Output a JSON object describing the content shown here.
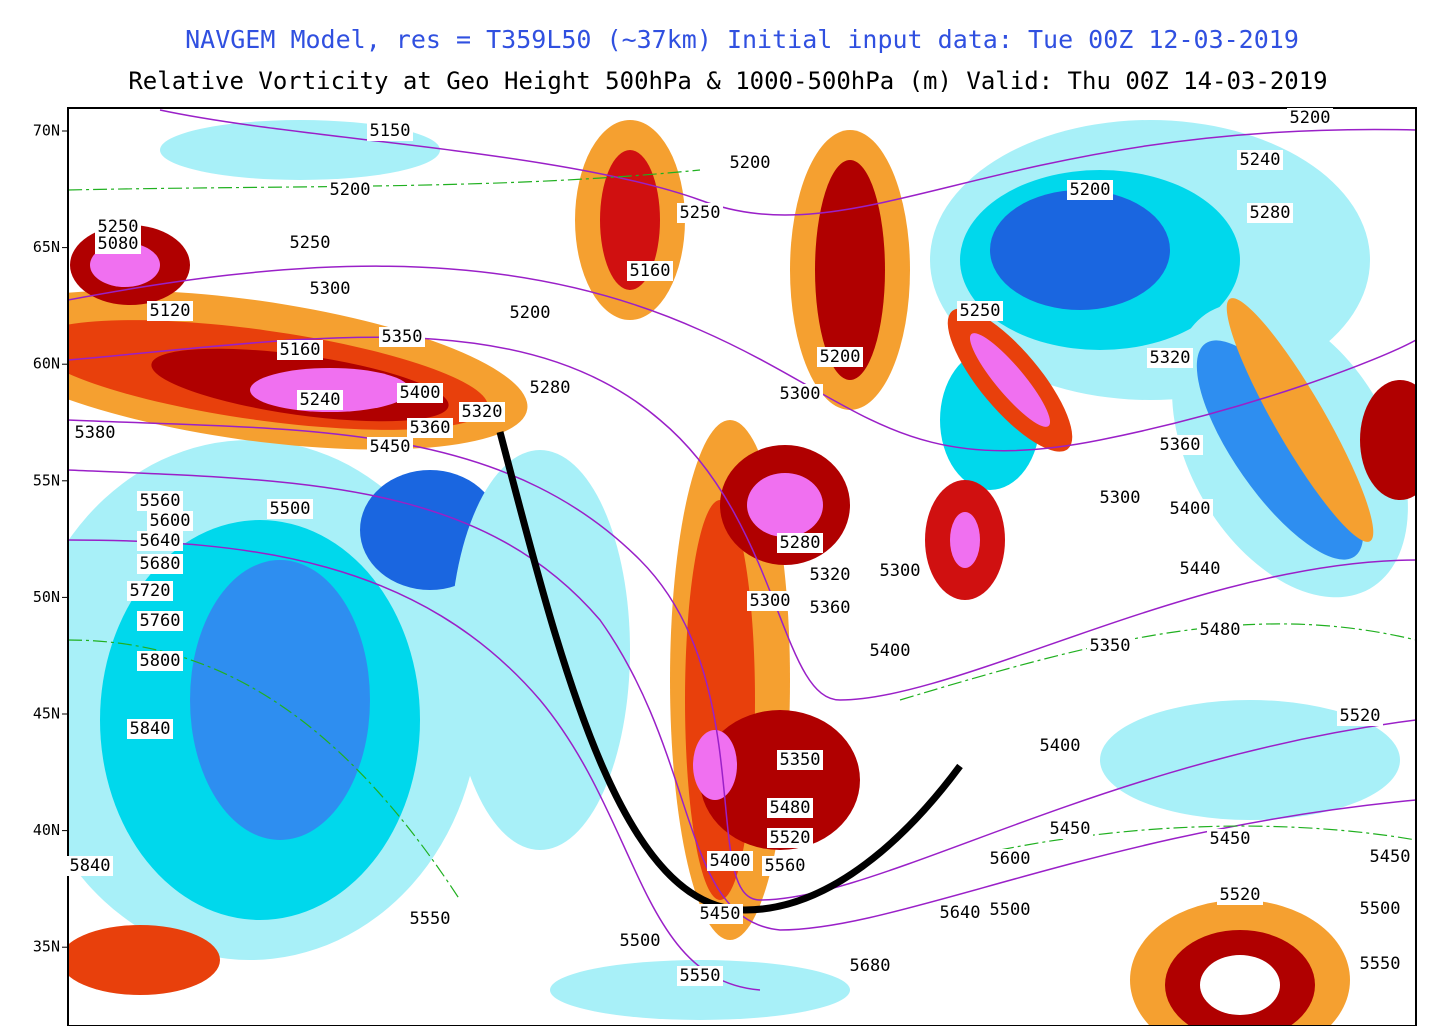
{
  "header": {
    "line1": "NAVGEM Model, res = T359L50 (~37km)    Initial input data: Tue 00Z 12-03-2019",
    "line2": "Relative Vorticity at Geo Height 500hPa & 1000-500hPa (m)  Valid: Thu 00Z 14-03-2019"
  },
  "latitudes": [
    "70N",
    "65N",
    "60N",
    "55N",
    "50N",
    "45N",
    "40N",
    "35N"
  ],
  "contours": [
    "5150",
    "5200",
    "5250",
    "5080",
    "5250",
    "5300",
    "5120",
    "5200",
    "5350",
    "5160",
    "5240",
    "5400",
    "5320",
    "5280",
    "5380",
    "5360",
    "5450",
    "5500",
    "5560",
    "5600",
    "5640",
    "5680",
    "5720",
    "5760",
    "5800",
    "5840",
    "5840",
    "5550",
    "5500",
    "5550",
    "5450",
    "5400",
    "5560",
    "5520",
    "5480",
    "5350",
    "5200",
    "5250",
    "5160",
    "5200",
    "5300",
    "5250",
    "5280",
    "5320",
    "5300",
    "5300",
    "5360",
    "5400",
    "5350",
    "5400",
    "5450",
    "5600",
    "5640",
    "5500",
    "5680",
    "5200",
    "5240",
    "5200",
    "5280",
    "5320",
    "5360",
    "5300",
    "5400",
    "5440",
    "5480",
    "5520",
    "5450",
    "5520",
    "5500",
    "5550",
    "5450"
  ]
}
